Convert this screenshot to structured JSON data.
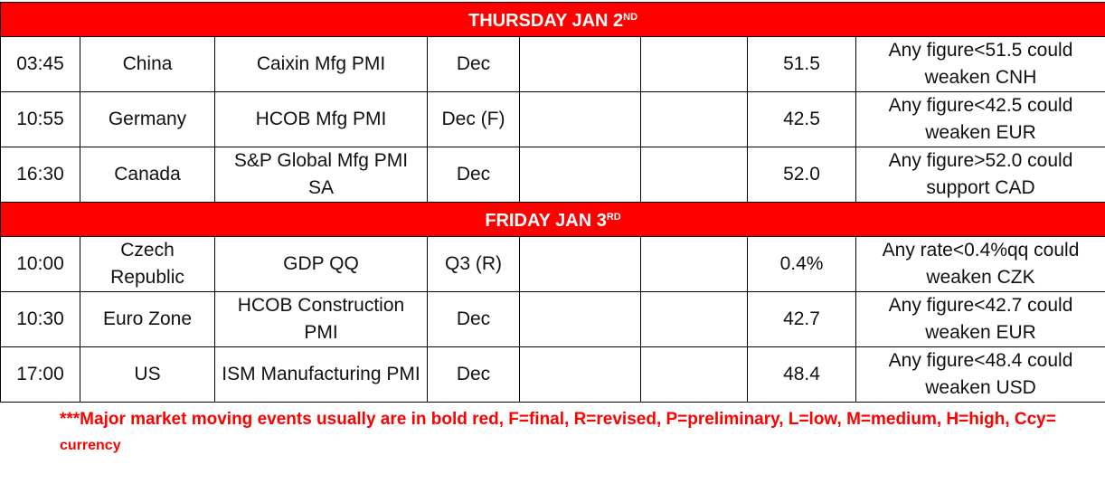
{
  "days": [
    {
      "label": "THURSDAY JAN 2",
      "suffix": "ND",
      "events": [
        {
          "time": "03:45",
          "country": "China",
          "event": "Caixin Mfg PMI",
          "period": "Dec",
          "col5": "",
          "col6": "",
          "previous": "51.5",
          "comment": "Any figure<51.5 could weaken CNH"
        },
        {
          "time": "10:55",
          "country": "Germany",
          "event": "HCOB Mfg PMI",
          "period": "Dec (F)",
          "col5": "",
          "col6": "",
          "previous": "42.5",
          "comment": "Any figure<42.5 could weaken EUR"
        },
        {
          "time": "16:30",
          "country": "Canada",
          "event": "S&P Global Mfg PMI SA",
          "period": "Dec",
          "col5": "",
          "col6": "",
          "previous": "52.0",
          "comment": "Any figure>52.0 could support CAD"
        }
      ]
    },
    {
      "label": "FRIDAY JAN 3",
      "suffix": "RD",
      "events": [
        {
          "time": "10:00",
          "country": "Czech Republic",
          "event": "GDP QQ",
          "period": "Q3 (R)",
          "col5": "",
          "col6": "",
          "previous": "0.4%",
          "comment": "Any rate<0.4%qq could weaken CZK"
        },
        {
          "time": "10:30",
          "country": "Euro Zone",
          "event": "HCOB Construction PMI",
          "period": "Dec",
          "col5": "",
          "col6": "",
          "previous": "42.7",
          "comment": "Any figure<42.7 could weaken EUR"
        },
        {
          "time": "17:00",
          "country": "US",
          "event": "ISM Manufacturing PMI",
          "period": "Dec",
          "col5": "",
          "col6": "",
          "previous": "48.4",
          "comment": "Any figure<48.4 could weaken USD"
        }
      ]
    }
  ],
  "footnote": {
    "main": "***Major market moving events usually are in bold red, F=final, R=revised, P=preliminary, L=low, M=medium, H=high, Ccy=",
    "small": " currency"
  },
  "colors": {
    "header_bg": "#ff0000",
    "header_text": "#ffffff",
    "footnote": "#ff0000"
  }
}
